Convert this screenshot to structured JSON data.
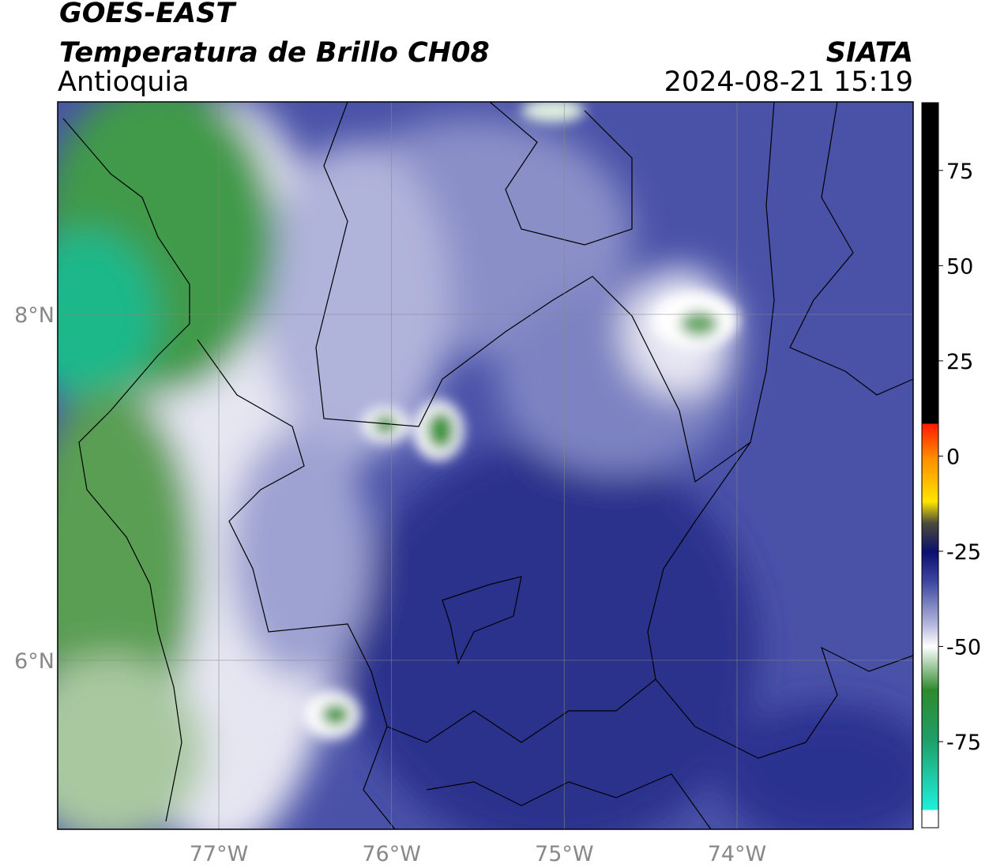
{
  "header": {
    "title": "GOES-EAST",
    "subtitle": "Temperatura de Brillo CH08",
    "region": "Antioquia",
    "source": "SIATA",
    "timestamp": "2024-08-21 15:19"
  },
  "map": {
    "lonlim": [
      -77.933,
      -72.98
    ],
    "latlim": [
      5.023,
      9.228
    ],
    "lon_ticks": [
      {
        "value": -77,
        "label": "77°W"
      },
      {
        "value": -76,
        "label": "76°W"
      },
      {
        "value": -75,
        "label": "75°W"
      },
      {
        "value": -74,
        "label": "74°W"
      }
    ],
    "lat_ticks": [
      {
        "value": 8,
        "label": "8°N"
      },
      {
        "value": 6,
        "label": "6°N"
      }
    ]
  },
  "colorbar": {
    "lim": [
      -97.6,
      92.8
    ],
    "ticks": [
      75,
      50,
      25,
      0,
      -25,
      -50,
      -75
    ]
  }
}
